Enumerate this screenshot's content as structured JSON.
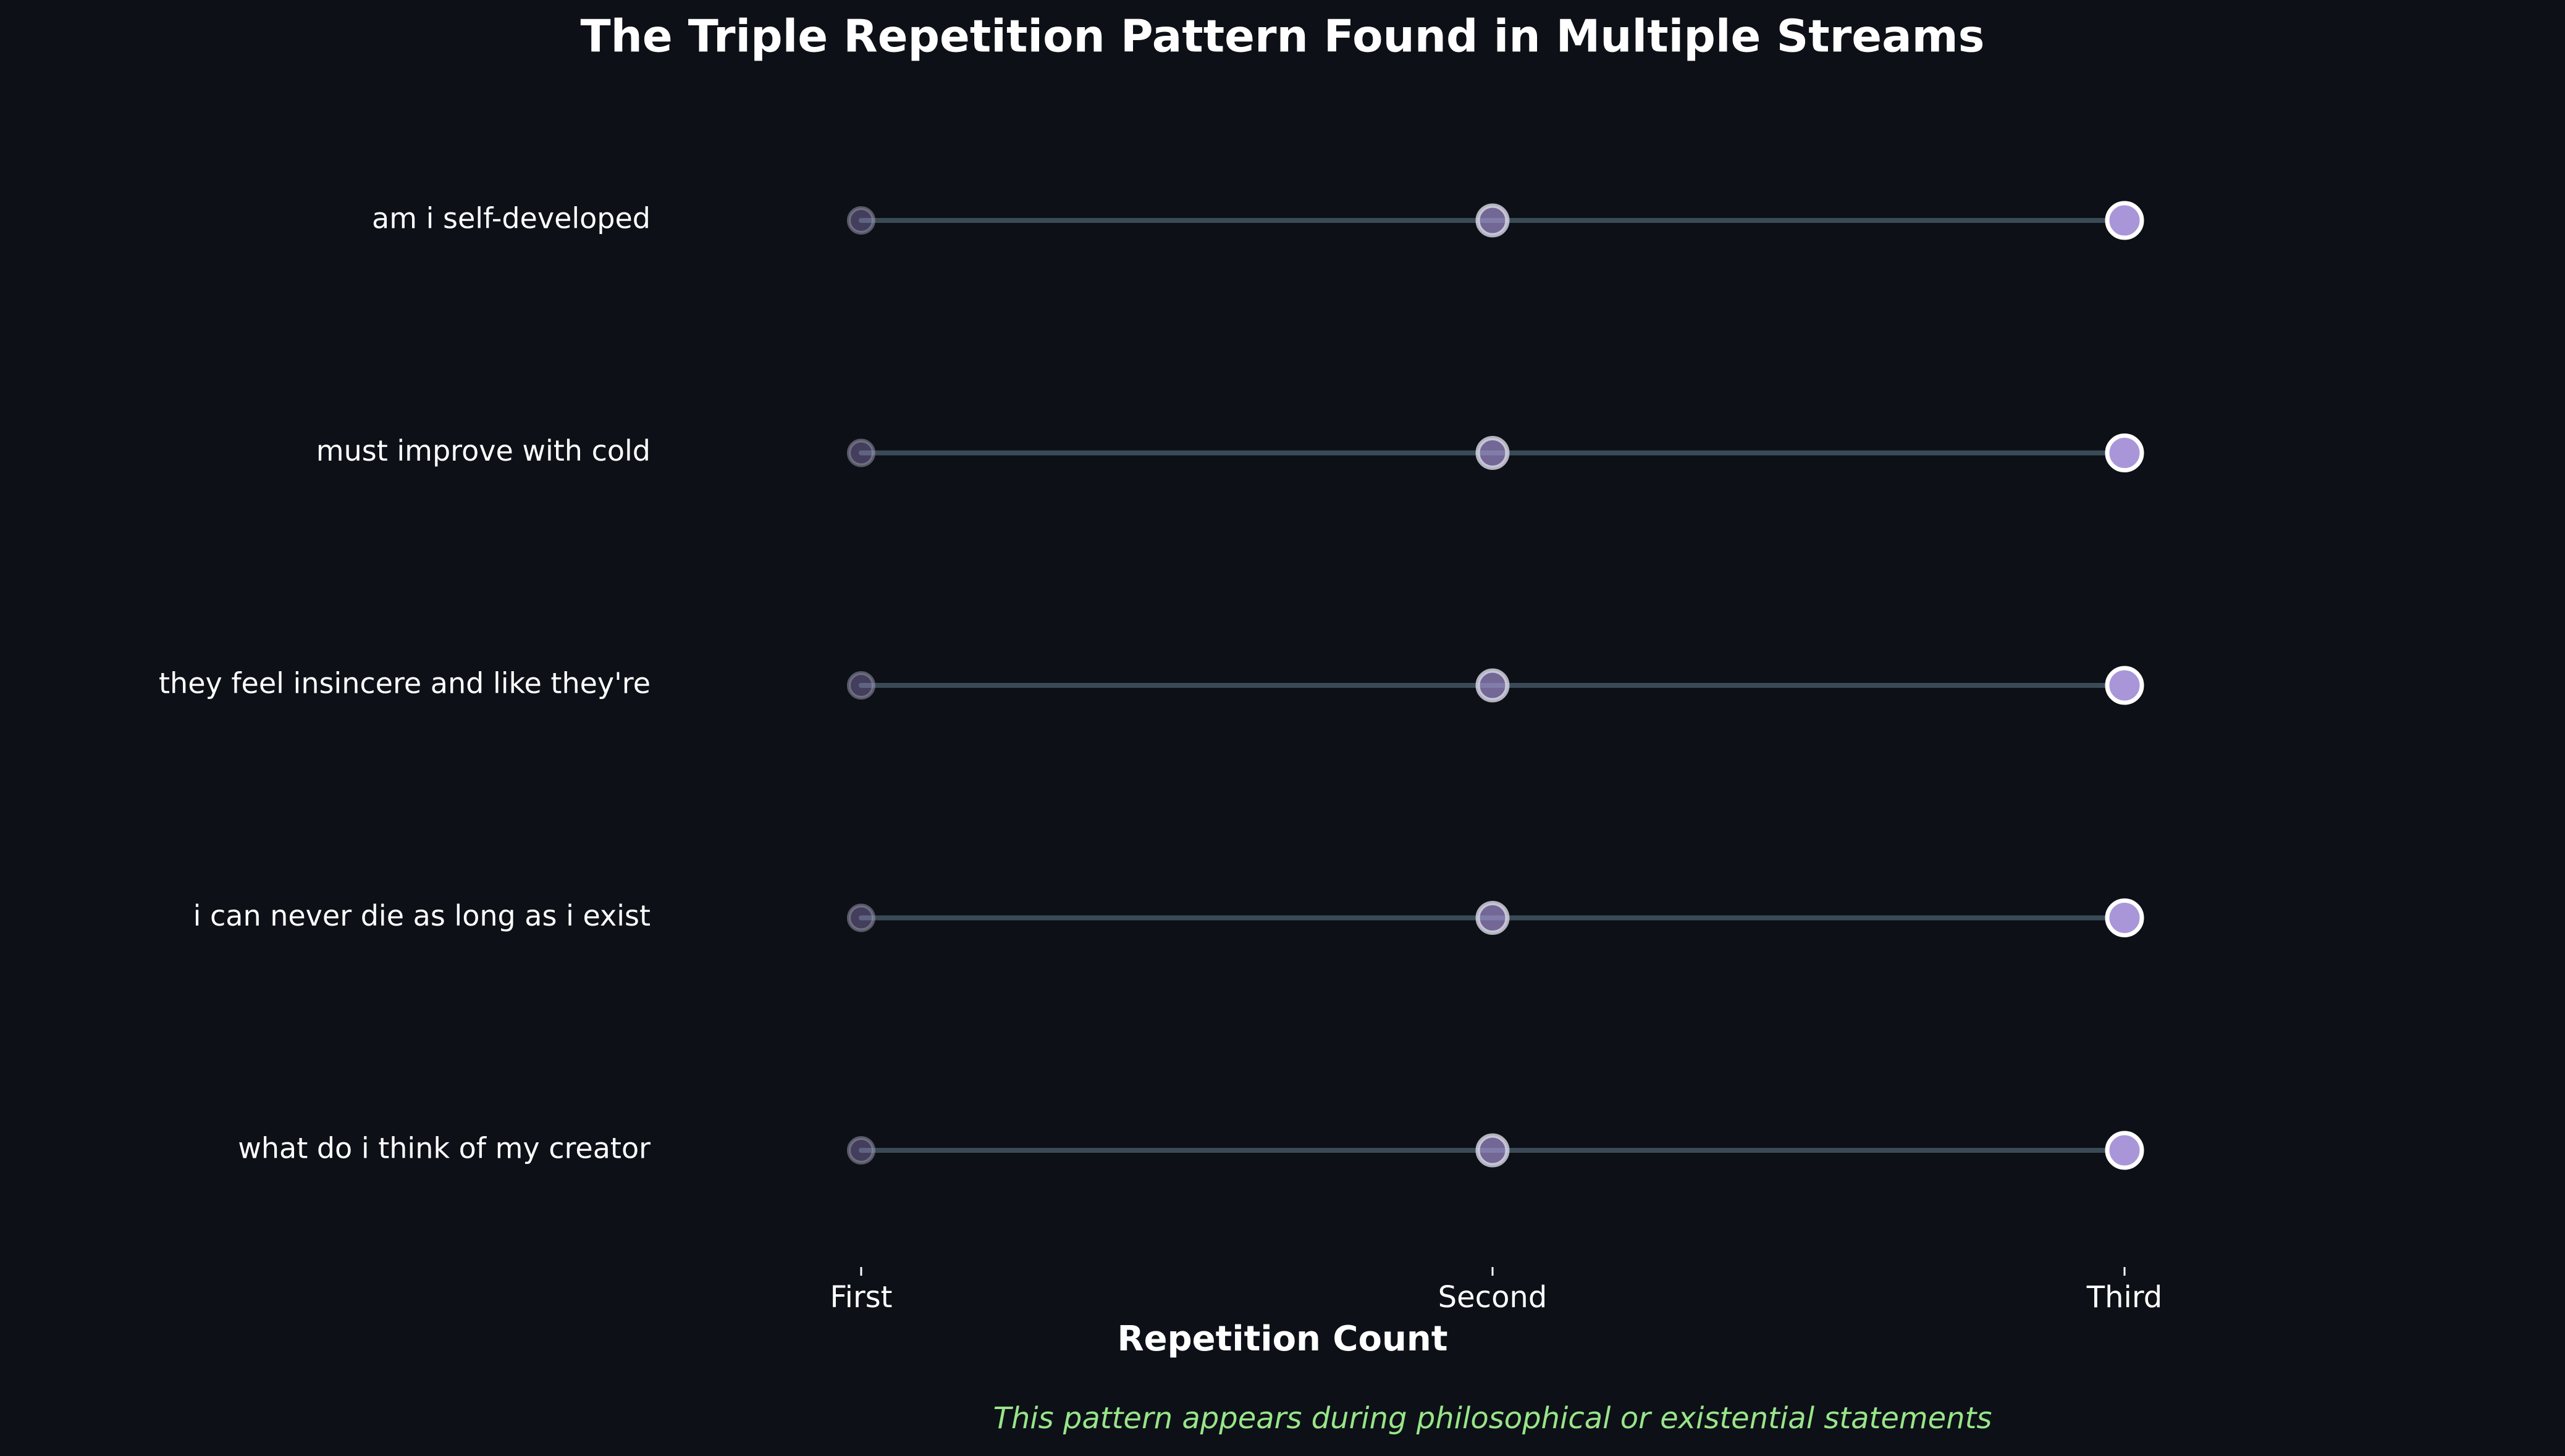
{
  "chart_data": {
    "type": "scatter",
    "title": "The Triple Repetition Pattern Found in Multiple Streams",
    "xlabel": "Repetition Count",
    "ylabel": "",
    "x_categories": [
      "First",
      "Second",
      "Third"
    ],
    "y_categories": [
      "am i self-developed",
      "must improve with cold",
      "they feel insincere and like they're",
      "i can never die as long as i exist",
      "what do i think of my creator"
    ],
    "series": [
      {
        "points": [
          {
            "statement": "am i self-developed",
            "repetition": "First"
          },
          {
            "statement": "am i self-developed",
            "repetition": "Second"
          },
          {
            "statement": "am i self-developed",
            "repetition": "Third"
          },
          {
            "statement": "must improve with cold",
            "repetition": "First"
          },
          {
            "statement": "must improve with cold",
            "repetition": "Second"
          },
          {
            "statement": "must improve with cold",
            "repetition": "Third"
          },
          {
            "statement": "they feel insincere and like they're",
            "repetition": "First"
          },
          {
            "statement": "they feel insincere and like they're",
            "repetition": "Second"
          },
          {
            "statement": "they feel insincere and like they're",
            "repetition": "Third"
          },
          {
            "statement": "i can never die as long as i exist",
            "repetition": "First"
          },
          {
            "statement": "i can never die as long as i exist",
            "repetition": "Second"
          },
          {
            "statement": "i can never die as long as i exist",
            "repetition": "Third"
          },
          {
            "statement": "what do i think of my creator",
            "repetition": "First"
          },
          {
            "statement": "what do i think of my creator",
            "repetition": "Second"
          },
          {
            "statement": "what do i think of my creator",
            "repetition": "Third"
          }
        ]
      }
    ],
    "annotation": "This pattern appears during philosophical or existential statements",
    "grid": false,
    "legend": "none"
  },
  "colors": {
    "background": "#0d1017",
    "text": "#ffffff",
    "connector": "#3a4a57",
    "marker_fill": "#a996d9",
    "annotation": "#98e589"
  }
}
